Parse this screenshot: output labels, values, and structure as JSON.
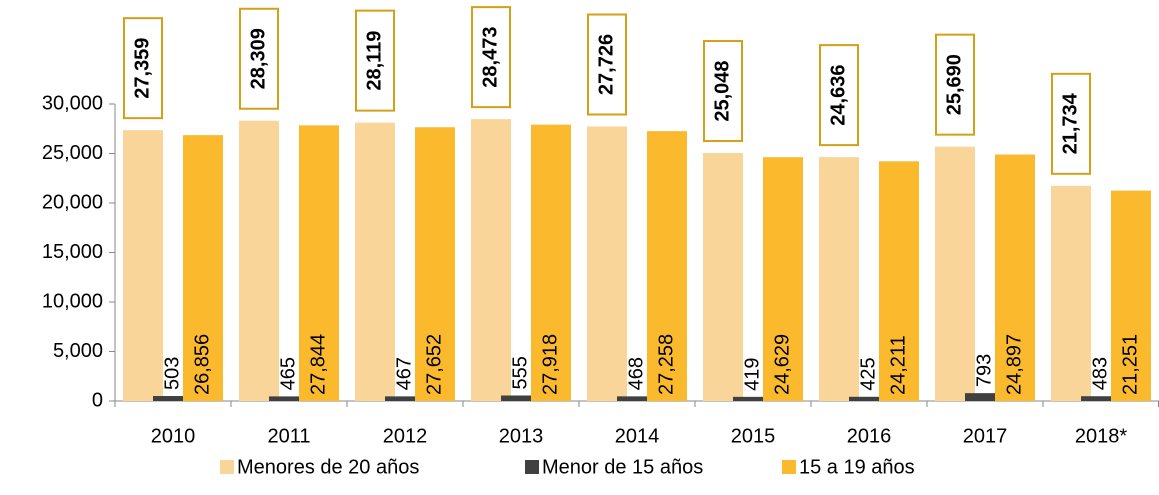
{
  "chart_data": {
    "type": "bar",
    "categories": [
      "2010",
      "2011",
      "2012",
      "2013",
      "2014",
      "2015",
      "2016",
      "2017",
      "2018*"
    ],
    "series": [
      {
        "name": "Menores de 20 años",
        "color": "#fad59a",
        "values": [
          27359,
          28309,
          28119,
          28473,
          27726,
          25048,
          24636,
          25690,
          21734
        ],
        "value_labels": [
          "27,359",
          "28,309",
          "28,119",
          "28,473",
          "27,726",
          "25,048",
          "24,636",
          "25,690",
          "21,734"
        ]
      },
      {
        "name": "Menor de 15 años",
        "color": "#404040",
        "values": [
          503,
          465,
          467,
          555,
          468,
          419,
          425,
          793,
          483
        ]
      },
      {
        "name": "15 a 19 años",
        "color": "#fbb92e",
        "values": [
          26856,
          27844,
          27652,
          27918,
          27258,
          24629,
          24211,
          24897,
          21251
        ],
        "value_labels": [
          "26,856",
          "27,844",
          "27,652",
          "27,918",
          "27,258",
          "24,629",
          "24,211",
          "24,897",
          "21,251"
        ]
      }
    ],
    "ylim": [
      0,
      30000
    ],
    "yticks": [
      0,
      {
        "value": 5000,
        "label": "5,000"
      },
      {
        "value": 10000,
        "label": "10,000"
      },
      {
        "value": 15000,
        "label": "15,000"
      },
      {
        "value": 20000,
        "label": "20,000"
      },
      {
        "value": 25000,
        "label": "25,000"
      },
      {
        "value": 30000,
        "label": "30,000"
      }
    ],
    "grid": false,
    "legend": "bottom"
  }
}
